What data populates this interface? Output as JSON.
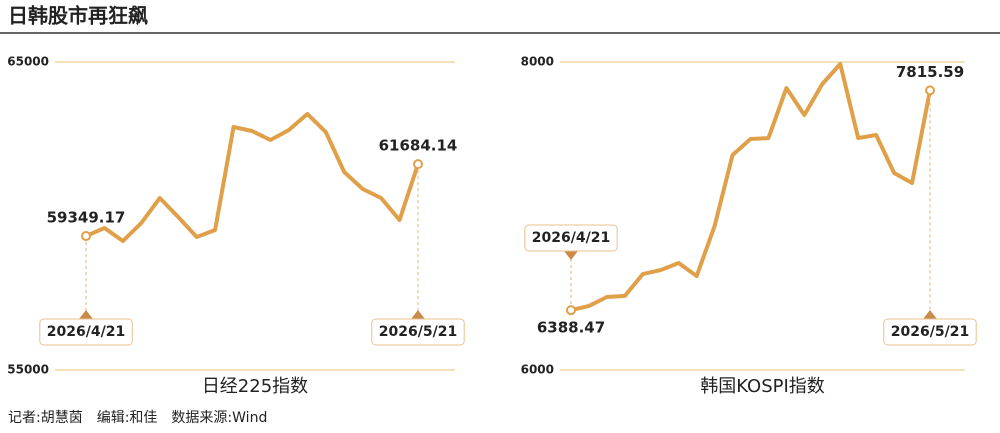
{
  "header": {
    "title": "日韩股市再狂飙"
  },
  "footer": {
    "text": "记者:胡慧茵　编辑:和佳　数据来源:Wind"
  },
  "chart_data": [
    {
      "type": "line",
      "title": "日经225指数",
      "categories": [
        "2026/4/21",
        null,
        null,
        null,
        null,
        null,
        null,
        null,
        null,
        null,
        null,
        null,
        null,
        null,
        null,
        null,
        null,
        null,
        "2026/5/21"
      ],
      "series": [
        {
          "color": "#e0a04a",
          "values": [
            59349.17,
            59610,
            59188,
            59773,
            60584,
            59968,
            59318,
            59545,
            62890,
            62760,
            62468,
            62792,
            63312,
            62727,
            61429,
            60877,
            60584,
            59870,
            61684.14
          ]
        }
      ],
      "ylim": [
        55000,
        65000
      ],
      "yticks": [
        55000,
        65000
      ],
      "grid": true
    },
    {
      "type": "line",
      "title": "韩国KOSPI指数",
      "categories": [
        "2026/4/21",
        null,
        null,
        null,
        null,
        null,
        null,
        null,
        null,
        null,
        null,
        null,
        null,
        null,
        null,
        null,
        null,
        null,
        null,
        null,
        "2026/5/21"
      ],
      "series": [
        {
          "color": "#e0a04a",
          "values": [
            6388.47,
            6416,
            6474,
            6481,
            6623,
            6649,
            6695,
            6610,
            6935,
            7396,
            7500,
            7506,
            7831,
            7656,
            7857,
            7987,
            7506,
            7526,
            7279,
            7214,
            7815.59
          ]
        }
      ],
      "ylim": [
        6000,
        8000
      ],
      "yticks": [
        6000,
        8000
      ],
      "grid": true
    }
  ]
}
